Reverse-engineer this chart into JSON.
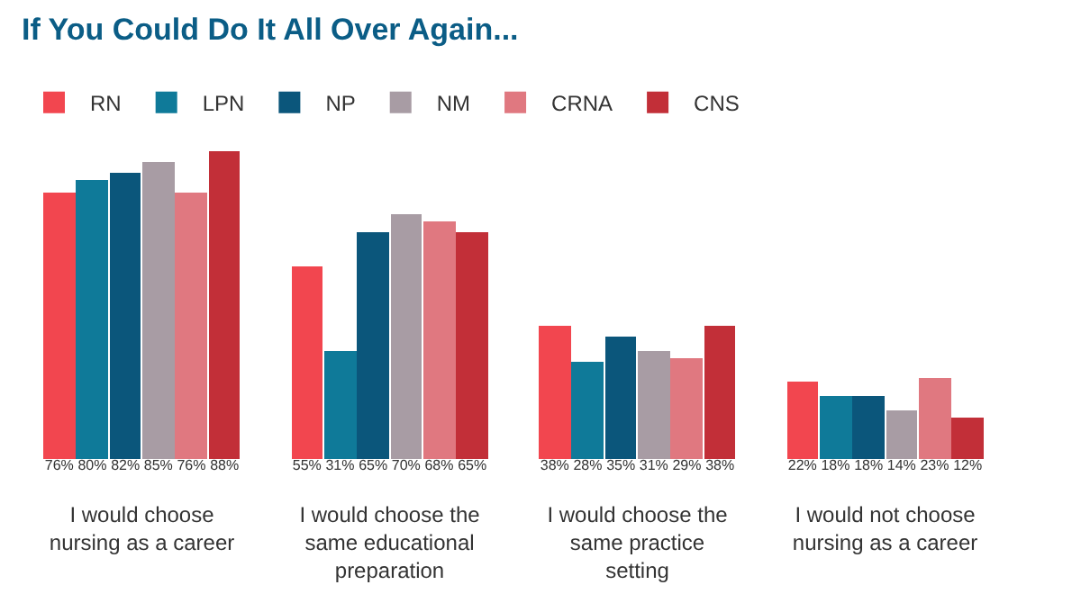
{
  "chart_data": {
    "type": "bar",
    "title": "If You Could Do It All Over Again...",
    "categories": [
      "I would choose nursing as a career",
      "I would choose the same educational preparation",
      "I would choose the same practice setting",
      "I would not choose nursing as a career"
    ],
    "series": [
      {
        "name": "RN",
        "color": "#f2464f",
        "values": [
          76,
          55,
          38,
          22
        ],
        "value_labels": [
          "76%",
          "55%",
          "38%",
          "22%"
        ]
      },
      {
        "name": "LPN",
        "color": "#0f7a99",
        "values": [
          80,
          31,
          28,
          18
        ],
        "value_labels": [
          "80%",
          "31%",
          "28%",
          "18%"
        ]
      },
      {
        "name": "NP",
        "color": "#0b567b",
        "values": [
          82,
          65,
          35,
          18
        ],
        "value_labels": [
          "82%",
          "65%",
          "35%",
          "18%"
        ]
      },
      {
        "name": "NM",
        "color": "#a89ca4",
        "values": [
          85,
          70,
          31,
          14
        ],
        "value_labels": [
          "85%",
          "70%",
          "31%",
          "14%"
        ]
      },
      {
        "name": "CRNA",
        "color": "#e07880",
        "values": [
          76,
          68,
          29,
          23
        ],
        "value_labels": [
          "76%",
          "68%",
          "29%",
          "23%"
        ]
      },
      {
        "name": "CNS",
        "color": "#c22f38",
        "values": [
          88,
          65,
          38,
          12
        ],
        "value_labels": [
          "88%",
          "65%",
          "38%",
          "12%"
        ]
      }
    ],
    "legend": "top left"
  }
}
